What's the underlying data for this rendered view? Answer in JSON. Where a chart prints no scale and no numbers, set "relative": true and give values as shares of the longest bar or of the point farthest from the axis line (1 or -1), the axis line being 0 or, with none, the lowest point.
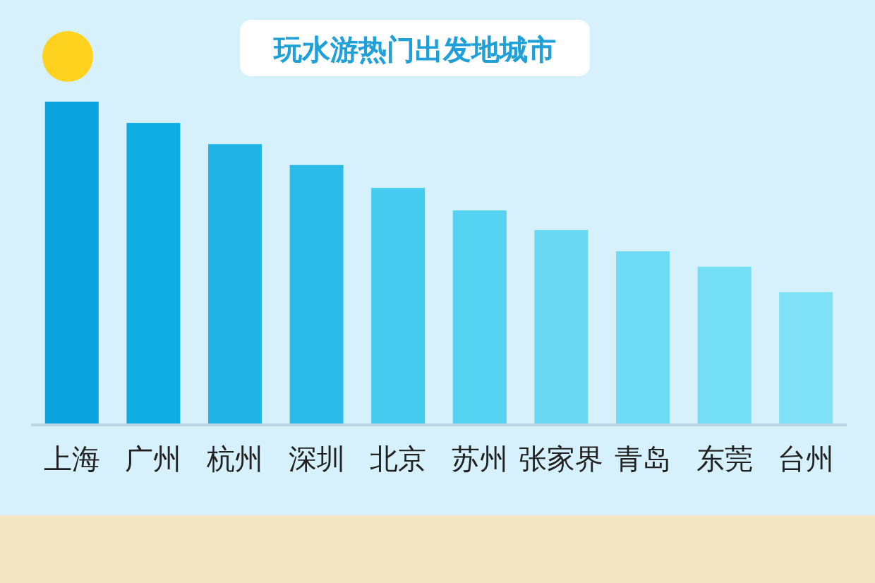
{
  "chart_data": {
    "type": "bar",
    "title": "玩水游热门出发地城市",
    "relative": true,
    "categories": [
      "上海",
      "广州",
      "杭州",
      "深圳",
      "北京",
      "苏州",
      "张家界",
      "青岛",
      "东莞",
      "台州"
    ],
    "values": [
      1,
      0.934,
      0.868,
      0.803,
      0.732,
      0.662,
      0.601,
      0.535,
      0.487,
      0.408
    ],
    "colors": [
      "#0aa3e0",
      "#10ace4",
      "#21b5e6",
      "#2bbbe8",
      "#45cbef",
      "#55d1f1",
      "#6adaf4",
      "#6fdcf5",
      "#74def5",
      "#7fe2f7"
    ]
  }
}
